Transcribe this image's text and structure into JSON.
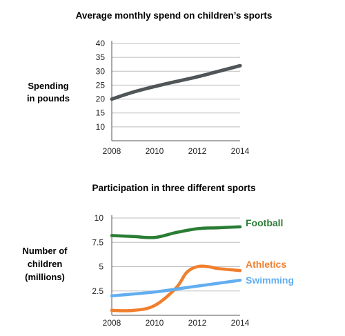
{
  "chart_data": [
    {
      "type": "line",
      "title": "Average monthly spend on children’s sports",
      "ylabel": [
        "Spending",
        "in pounds"
      ],
      "xlabel": "",
      "x_ticks": [
        2008,
        2010,
        2012,
        2014
      ],
      "y_ticks": [
        10,
        15,
        20,
        25,
        30,
        35,
        40
      ],
      "xlim": [
        2008,
        2014
      ],
      "ylim": [
        5,
        40
      ],
      "grid": true,
      "series": [
        {
          "x": [
            2008,
            2009,
            2010,
            2011,
            2012,
            2013,
            2014
          ],
          "values": [
            20,
            22.5,
            24.5,
            26.3,
            28,
            30,
            32
          ],
          "color": "#505558"
        }
      ]
    },
    {
      "type": "line",
      "title": "Participation in three different sports",
      "ylabel": [
        "Number of",
        "children",
        "(millions)"
      ],
      "xlabel": "",
      "x_ticks": [
        2008,
        2010,
        2012,
        2014
      ],
      "y_ticks": [
        2.5,
        5,
        7.5,
        10
      ],
      "xlim": [
        2008,
        2014
      ],
      "ylim": [
        0,
        10
      ],
      "grid": true,
      "series": [
        {
          "name": "Football",
          "x": [
            2008,
            2009,
            2010,
            2011,
            2012,
            2013,
            2014
          ],
          "values": [
            8.2,
            8.1,
            8.0,
            8.5,
            8.9,
            9.0,
            9.1
          ],
          "color": "#2a7d34"
        },
        {
          "name": "Athletics",
          "x": [
            2008,
            2009,
            2010,
            2011,
            2011.5,
            2012,
            2012.5,
            2013,
            2014
          ],
          "values": [
            0.5,
            0.5,
            1.0,
            2.8,
            4.4,
            5.0,
            5.0,
            4.8,
            4.6
          ],
          "color": "#f07f2d"
        },
        {
          "name": "Swimming",
          "x": [
            2008,
            2010,
            2012,
            2014
          ],
          "values": [
            2.0,
            2.4,
            3.0,
            3.6
          ],
          "color": "#62aef0"
        }
      ]
    }
  ]
}
